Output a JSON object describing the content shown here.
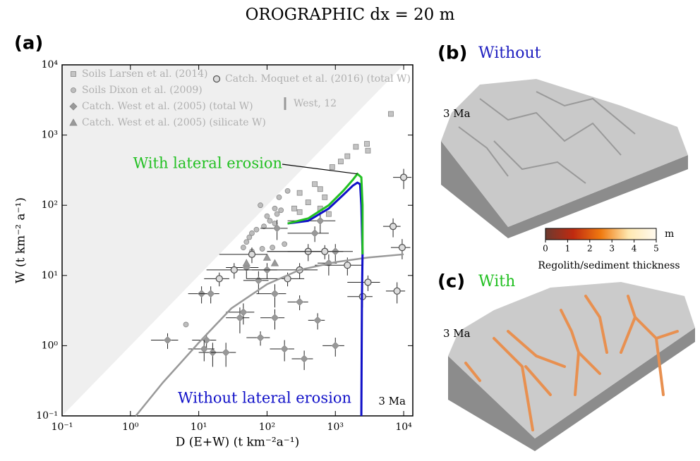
{
  "title": "OROGRAPHIC dx = 20 m",
  "panels": {
    "a": "(a)",
    "b": {
      "label": "(b)",
      "name": "Without",
      "time": "3 Ma"
    },
    "c": {
      "label": "(c)",
      "name": "With",
      "time": "3 Ma"
    }
  },
  "chart_data": [
    {
      "type": "scatter",
      "x_label": "D (E+W) (t km⁻²a⁻¹)",
      "y_label": "W (t km⁻² a⁻¹)",
      "log_x": true,
      "log_y": true,
      "xlim": [
        0.1,
        13600
      ],
      "ylim": [
        0.1,
        10000
      ],
      "xticks": [
        {
          "value": 0.1,
          "label": "10⁻¹"
        },
        {
          "value": 1,
          "label": "10⁰"
        },
        {
          "value": 10,
          "label": "10¹"
        },
        {
          "value": 100,
          "label": "10²"
        },
        {
          "value": 1000,
          "label": "10³"
        },
        {
          "value": 10000,
          "label": "10⁴"
        }
      ],
      "yticks": [
        {
          "value": 0.1,
          "label": "10⁻¹"
        },
        {
          "value": 1,
          "label": "10⁰"
        },
        {
          "value": 10,
          "label": "10¹"
        },
        {
          "value": 100,
          "label": "10²"
        },
        {
          "value": 1000,
          "label": "10³"
        },
        {
          "value": 10000,
          "label": "10⁴"
        }
      ],
      "annotation": "3 Ma",
      "series": [
        {
          "name": "Soils Larsen et al. (2014)",
          "marker": "square",
          "color": "#c4c4c4",
          "x": [
            6500,
            2900,
            3000,
            2000,
            1500,
            1200,
            900,
            500,
            600,
            300,
            700,
            400,
            250,
            600,
            300,
            800
          ],
          "values": [
            2000,
            750,
            600,
            680,
            500,
            420,
            350,
            200,
            170,
            150,
            130,
            110,
            90,
            90,
            80,
            75
          ]
        },
        {
          "name": "Soils Dixon et al. (2009)",
          "marker": "circle",
          "color": "#bdbdbd",
          "x": [
            80,
            150,
            200,
            130,
            100,
            110,
            90,
            70,
            60,
            55,
            50,
            45,
            60,
            85,
            120,
            180,
            160,
            130,
            140,
            6.5
          ],
          "values": [
            100,
            130,
            160,
            90,
            70,
            60,
            50,
            45,
            40,
            35,
            30,
            25,
            22,
            24,
            25,
            28,
            85,
            55,
            75,
            2
          ]
        },
        {
          "name": "Catch. West et al. (2005) (total W)",
          "marker": "diamond",
          "color": "#999999",
          "x": [
            3.5,
            11,
            15,
            13,
            16,
            25,
            12,
            40,
            45,
            50,
            75,
            80,
            130,
            130,
            140,
            180,
            100,
            300,
            350,
            550,
            800,
            1000,
            1000,
            500,
            600
          ],
          "values": [
            1.2,
            5.5,
            5.5,
            1.2,
            0.8,
            0.8,
            0.9,
            2.5,
            3,
            13,
            8.5,
            1.3,
            2.5,
            5.5,
            47,
            0.9,
            12,
            4.2,
            0.65,
            2.3,
            15,
            1,
            22,
            40,
            60
          ],
          "xerr": [
            1.5,
            4,
            5,
            5,
            6,
            10,
            5,
            15,
            20,
            25,
            30,
            30,
            50,
            60,
            60,
            70,
            40,
            100,
            120,
            150,
            250,
            350,
            800,
            300,
            400
          ],
          "yerr": [
            0.3,
            1.5,
            1.5,
            0.3,
            0.3,
            0.3,
            0.3,
            1,
            1,
            4,
            3,
            0.3,
            0.8,
            2,
            15,
            0.3,
            3,
            1,
            0.2,
            0.6,
            5,
            0.3,
            6,
            10,
            20
          ]
        },
        {
          "name": "Catch. West et al. (2005) (silicate W)",
          "marker": "triangle",
          "color": "#999999",
          "x": [
            50,
            130,
            100
          ],
          "values": [
            15,
            15,
            18
          ]
        },
        {
          "name": "Catch. Moquet et al. (2016) (total W)",
          "marker": "open-circle",
          "color": "#dddddd",
          "x": [
            20,
            33,
            60,
            200,
            300,
            400,
            700,
            1500,
            3000,
            10000,
            7000,
            9500,
            8000,
            2500
          ],
          "values": [
            9,
            12,
            20,
            9,
            12,
            22,
            22,
            14,
            8,
            250,
            50,
            25,
            6,
            5
          ],
          "xerr": [
            8,
            20,
            40,
            150,
            250,
            300,
            600,
            1000,
            1500,
            3000,
            2000,
            3000,
            2500,
            1000
          ],
          "yerr": [
            2,
            3,
            5,
            2,
            3,
            6,
            5,
            4,
            2,
            80,
            15,
            8,
            2,
            1.5
          ]
        },
        {
          "name": "West, 12",
          "marker": "bar",
          "color": "#999999",
          "x": [],
          "values": []
        }
      ],
      "lines": [
        {
          "color": "#999999",
          "x": [
            1.2,
            3,
            10,
            30,
            100,
            300,
            1000,
            3000,
            10000
          ],
          "values": [
            0.1,
            0.3,
            1.1,
            3.4,
            7.5,
            12,
            15.5,
            18,
            20
          ]
        },
        {
          "name": "Without lateral erosion",
          "color": "#1010c8",
          "x": [
            200,
            400,
            800,
            1300,
            1800,
            2100,
            2300,
            2400,
            2500,
            2450,
            2400
          ],
          "values": [
            55,
            60,
            90,
            140,
            190,
            210,
            200,
            100,
            20,
            5,
            0.1
          ]
        },
        {
          "name": "With lateral erosion",
          "color": "#22c022",
          "x": [
            200,
            400,
            800,
            1300,
            1800,
            2100,
            2400,
            2500,
            2500
          ],
          "values": [
            55,
            65,
            100,
            160,
            230,
            280,
            250,
            100,
            20
          ]
        }
      ]
    },
    {
      "type": "colorbar",
      "label": "Regolith/sediment thickness",
      "unit": "m",
      "xlim": [
        0,
        5
      ],
      "xticks": [
        0,
        1,
        2,
        3,
        4,
        5
      ],
      "colors": [
        "#6b3a30",
        "#c02a10",
        "#f07a10",
        "#ffe8b0",
        "#fffaf0"
      ]
    }
  ]
}
